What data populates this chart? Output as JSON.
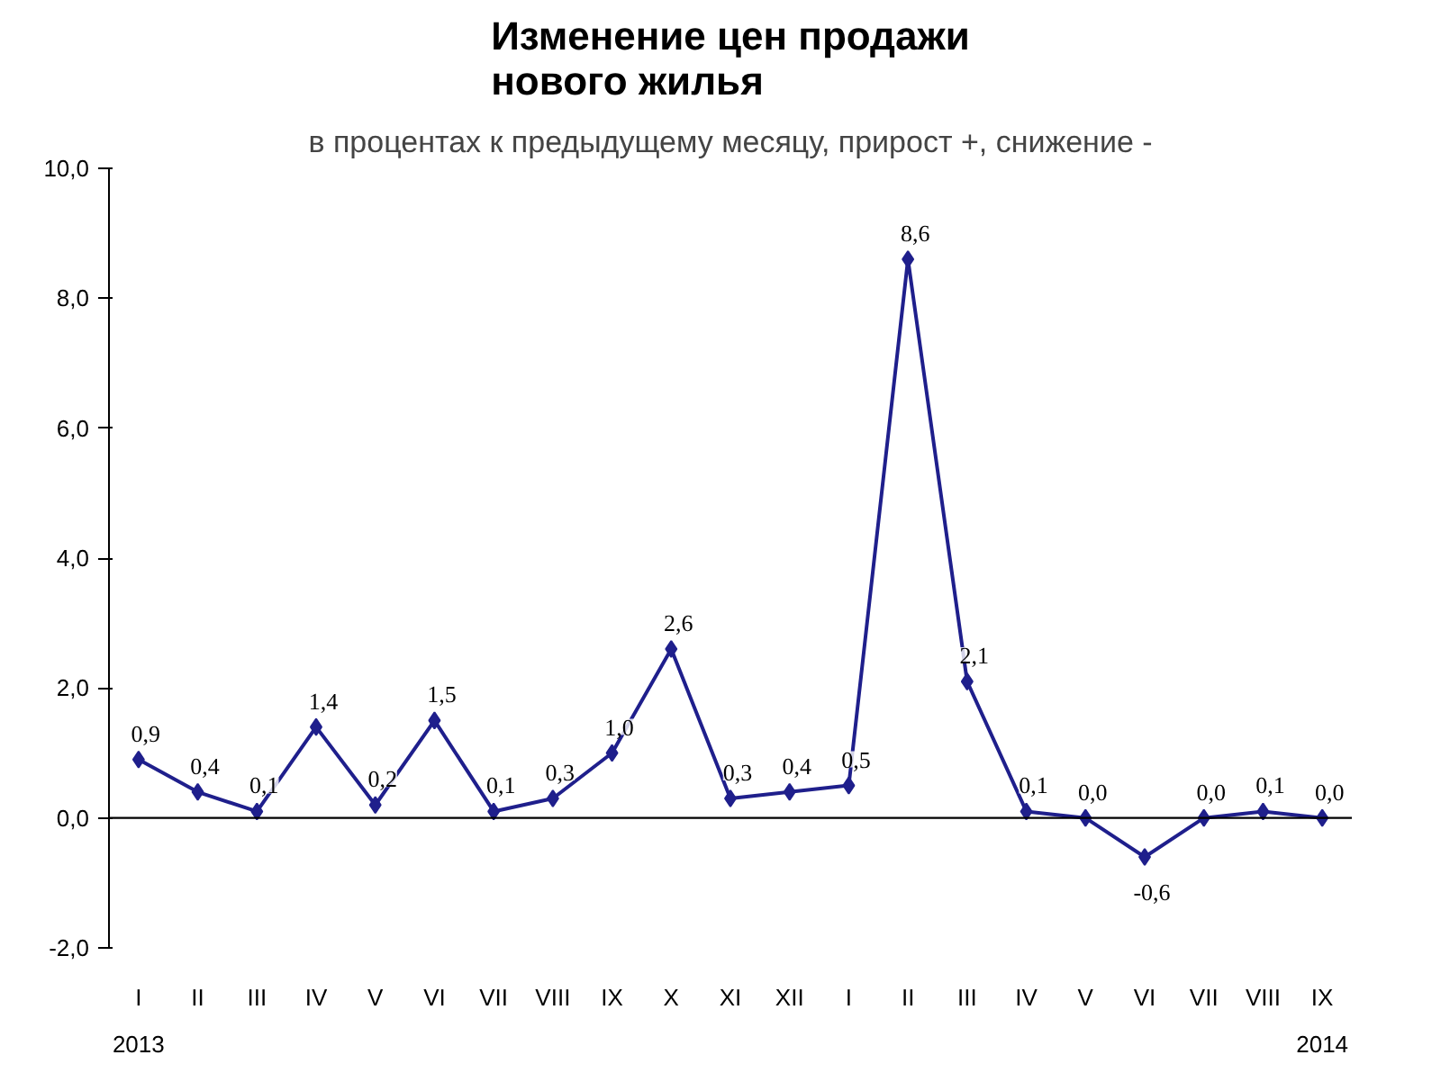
{
  "chart_data": {
    "type": "line",
    "title": "Изменение цен продажи\nнового жилья",
    "subtitle": "в процентах к предыдущему месяцу, прирост +, снижение -",
    "categories": [
      "I",
      "II",
      "III",
      "IV",
      "V",
      "VI",
      "VII",
      "VIII",
      "IX",
      "X",
      "XI",
      "XII",
      "I",
      "II",
      "III",
      "IV",
      "V",
      "VI",
      "VII",
      "VIII",
      "IX"
    ],
    "series": [
      {
        "color": "#1f1f8c",
        "values": [
          0.9,
          0.4,
          0.1,
          1.4,
          0.2,
          1.5,
          0.1,
          0.3,
          1.0,
          2.6,
          0.3,
          0.4,
          0.5,
          8.6,
          2.1,
          0.1,
          0.0,
          -0.6,
          0.0,
          0.1,
          0.0
        ],
        "value_labels": [
          "0,9",
          "0,4",
          "0,1",
          "1,4",
          "0,2",
          "1,5",
          "0,1",
          "0,3",
          "1,0",
          "2,6",
          "0,3",
          "0,4",
          "0,5",
          "8,6",
          "2,1",
          "0,1",
          "0,0",
          "-0,6",
          "0,0",
          "0,1",
          "0,0"
        ]
      }
    ],
    "ylim": [
      -2.0,
      10.0
    ],
    "yticks": [
      {
        "value": -2,
        "label": "-2,0"
      },
      {
        "value": 0,
        "label": "0,0"
      },
      {
        "value": 2,
        "label": "2,0"
      },
      {
        "value": 4,
        "label": "4,0"
      },
      {
        "value": 6,
        "label": "6,0"
      },
      {
        "value": 8,
        "label": "8,0"
      },
      {
        "value": 10,
        "label": "10,0"
      }
    ],
    "ref_lines": [
      {
        "axis": "y",
        "value": 0,
        "color": "#000000"
      }
    ],
    "annotations": [
      "2013",
      "2014"
    ],
    "marker": "diamond",
    "line_style": "solid",
    "grid": false
  }
}
